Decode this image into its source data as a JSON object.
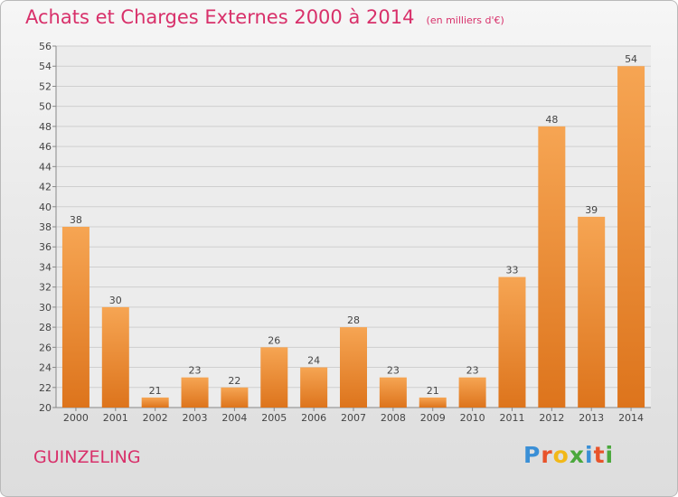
{
  "header": {
    "title": "Achats et Charges Externes 2000 à 2014",
    "subtitle": "(en milliers d'€)"
  },
  "footer": {
    "commune": "GUINZELING",
    "logo_text": "Proxiti",
    "logo_colors": [
      "#3a8fd6",
      "#e8532a",
      "#f2b818",
      "#4aa83c",
      "#3a8fd6",
      "#e8532a",
      "#4aa83c"
    ]
  },
  "colors": {
    "bar_light": "#f6a553",
    "bar_dark": "#dd741c",
    "accent": "#d8306a",
    "grid": "#cfcfcf",
    "text": "#444444"
  },
  "chart_data": {
    "type": "bar",
    "categories": [
      "2000",
      "2001",
      "2002",
      "2003",
      "2004",
      "2005",
      "2006",
      "2007",
      "2008",
      "2009",
      "2010",
      "2011",
      "2012",
      "2013",
      "2014"
    ],
    "values": [
      38,
      30,
      21,
      23,
      22,
      26,
      24,
      28,
      23,
      21,
      23,
      33,
      48,
      39,
      54
    ],
    "title": "Achats et Charges Externes 2000 à 2014",
    "subtitle": "(en milliers d'€)",
    "xlabel": "",
    "ylabel": "",
    "ylim": [
      20,
      56
    ],
    "ytick_step": 2,
    "grid": true,
    "legend": "none"
  }
}
